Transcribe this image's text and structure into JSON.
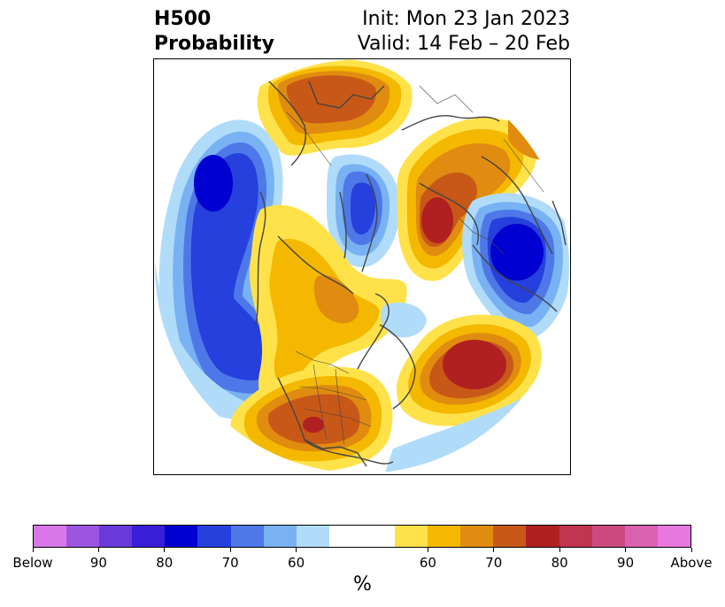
{
  "header": {
    "title_line1": "H500",
    "title_line2": "Probability",
    "init_text": "Init: Mon 23 Jan 2023",
    "valid_text": "Valid: 14 Feb – 20 Feb"
  },
  "colorbar": {
    "units": "%",
    "colors": [
      "#d878e8",
      "#9d55e0",
      "#6a3ad8",
      "#3a1ed6",
      "#0000d0",
      "#2540dc",
      "#4e78e8",
      "#78b2f2",
      "#b0dcfa",
      "#ffffff",
      "#ffe24a",
      "#f4b800",
      "#e08c10",
      "#c85818",
      "#b02020",
      "#c03550",
      "#cc4a80",
      "#da60b0",
      "#e878e0"
    ],
    "tick_labels": [
      "Below",
      "90",
      "80",
      "70",
      "60",
      "60",
      "70",
      "80",
      "90",
      "Above"
    ]
  },
  "anomaly_colors": {
    "below_60": "#b0dcfa",
    "below_65": "#78b2f2",
    "below_70": "#4e78e8",
    "below_75": "#2540dc",
    "below_80": "#0000d0",
    "above_60": "#ffe24a",
    "above_65": "#f4b800",
    "above_70": "#e08c10",
    "above_75": "#c85818",
    "above_80": "#b02020",
    "coastline": "#444444"
  }
}
